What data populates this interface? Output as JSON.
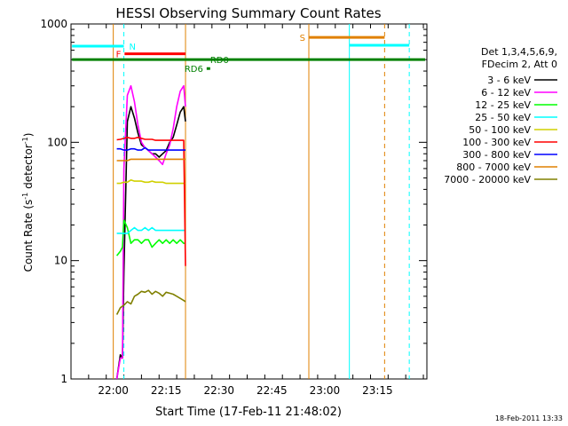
{
  "chart_data": {
    "type": "line",
    "title": "HESSI Observing Summary Count Rates",
    "xlabel": "Start Time (17-Feb-11 21:48:02)",
    "ylabel_main": "Count Rate (s",
    "ylabel_sup1": "-1",
    "ylabel_mid": " detector",
    "ylabel_sup2": "-1",
    "ylabel_end": ")",
    "yscale": "log",
    "ylim": [
      1,
      1000
    ],
    "xlim_min": [
      0,
      101
    ],
    "x_ticks": [
      {
        "label": "22:00",
        "min": 12
      },
      {
        "label": "22:15",
        "min": 27
      },
      {
        "label": "22:30",
        "min": 42
      },
      {
        "label": "22:45",
        "min": 57
      },
      {
        "label": "23:00",
        "min": 72
      },
      {
        "label": "23:15",
        "min": 87
      }
    ],
    "y_ticks": [
      {
        "label": "1",
        "v": 1
      },
      {
        "label": "10",
        "v": 10
      },
      {
        "label": "100",
        "v": 100
      },
      {
        "label": "1000",
        "v": 1000
      }
    ],
    "legend": {
      "header1": "Det 1,3,4,5,6,9,",
      "header2": "FDecim 2, Att 0",
      "placement": "right"
    },
    "series": [
      {
        "name": "3 - 6 keV",
        "color": "#000000",
        "points": [
          [
            13,
            1
          ],
          [
            14,
            1.6
          ],
          [
            14.6,
            1.5
          ],
          [
            15,
            8
          ],
          [
            16,
            150
          ],
          [
            17,
            200
          ],
          [
            18,
            160
          ],
          [
            19,
            120
          ],
          [
            20,
            95
          ],
          [
            21,
            90
          ],
          [
            22,
            85
          ],
          [
            23,
            80
          ],
          [
            24,
            80
          ],
          [
            25,
            75
          ],
          [
            26,
            80
          ],
          [
            27,
            85
          ],
          [
            28,
            100
          ],
          [
            29,
            110
          ],
          [
            30,
            140
          ],
          [
            31,
            180
          ],
          [
            32,
            200
          ],
          [
            32.5,
            150
          ]
        ]
      },
      {
        "name": "6 - 12 keV",
        "color": "#ff00ff",
        "points": [
          [
            13,
            1
          ],
          [
            14,
            1.5
          ],
          [
            14.6,
            1.5
          ],
          [
            15,
            60
          ],
          [
            16,
            250
          ],
          [
            17,
            300
          ],
          [
            18,
            220
          ],
          [
            19,
            140
          ],
          [
            20,
            100
          ],
          [
            21,
            90
          ],
          [
            22,
            85
          ],
          [
            23,
            80
          ],
          [
            24,
            75
          ],
          [
            25,
            70
          ],
          [
            26,
            65
          ],
          [
            27,
            80
          ],
          [
            28,
            95
          ],
          [
            29,
            130
          ],
          [
            30,
            200
          ],
          [
            31,
            270
          ],
          [
            32,
            300
          ],
          [
            32.5,
            200
          ]
        ]
      },
      {
        "name": "12 - 25 keV",
        "color": "#00ff00",
        "points": [
          [
            13,
            11
          ],
          [
            14,
            12
          ],
          [
            14.6,
            13
          ],
          [
            15,
            22
          ],
          [
            16,
            19
          ],
          [
            17,
            14
          ],
          [
            18,
            15
          ],
          [
            19,
            15
          ],
          [
            20,
            14
          ],
          [
            21,
            15
          ],
          [
            22,
            15
          ],
          [
            23,
            13
          ],
          [
            24,
            14
          ],
          [
            25,
            15
          ],
          [
            26,
            14
          ],
          [
            27,
            15
          ],
          [
            28,
            14
          ],
          [
            29,
            15
          ],
          [
            30,
            14
          ],
          [
            31,
            15
          ],
          [
            32,
            14
          ],
          [
            32.5,
            14
          ]
        ]
      },
      {
        "name": "25 - 50 keV",
        "color": "#00ffff",
        "points": [
          [
            13,
            17
          ],
          [
            14,
            17
          ],
          [
            15,
            17
          ],
          [
            16,
            17
          ],
          [
            17,
            18
          ],
          [
            18,
            19
          ],
          [
            19,
            18
          ],
          [
            20,
            18
          ],
          [
            21,
            19
          ],
          [
            22,
            18
          ],
          [
            23,
            19
          ],
          [
            24,
            18
          ],
          [
            25,
            18
          ],
          [
            26,
            18
          ],
          [
            27,
            18
          ],
          [
            28,
            18
          ],
          [
            29,
            18
          ],
          [
            30,
            18
          ],
          [
            31,
            18
          ],
          [
            32,
            18
          ],
          [
            32.5,
            18
          ]
        ]
      },
      {
        "name": "50 - 100 keV",
        "color": "#d0d000",
        "points": [
          [
            13,
            45
          ],
          [
            14,
            45
          ],
          [
            15,
            46
          ],
          [
            16,
            46
          ],
          [
            17,
            48
          ],
          [
            18,
            47
          ],
          [
            19,
            47
          ],
          [
            20,
            47
          ],
          [
            21,
            46
          ],
          [
            22,
            46
          ],
          [
            23,
            47
          ],
          [
            24,
            46
          ],
          [
            25,
            46
          ],
          [
            26,
            46
          ],
          [
            27,
            45
          ],
          [
            28,
            45
          ],
          [
            29,
            45
          ],
          [
            30,
            45
          ],
          [
            31,
            45
          ],
          [
            32,
            45
          ],
          [
            32.5,
            45
          ]
        ]
      },
      {
        "name": "100 - 300 keV",
        "color": "#ff0000",
        "points": [
          [
            13,
            105
          ],
          [
            14,
            106
          ],
          [
            15,
            108
          ],
          [
            16,
            110
          ],
          [
            17,
            108
          ],
          [
            18,
            108
          ],
          [
            19,
            110
          ],
          [
            20,
            108
          ],
          [
            21,
            106
          ],
          [
            22,
            106
          ],
          [
            23,
            106
          ],
          [
            24,
            104
          ],
          [
            25,
            104
          ],
          [
            26,
            104
          ],
          [
            27,
            104
          ],
          [
            28,
            104
          ],
          [
            29,
            104
          ],
          [
            30,
            104
          ],
          [
            31,
            104
          ],
          [
            32,
            104
          ],
          [
            32.5,
            9
          ]
        ]
      },
      {
        "name": "300 - 800 keV",
        "color": "#0000ff",
        "points": [
          [
            13,
            88
          ],
          [
            14,
            88
          ],
          [
            15,
            86
          ],
          [
            16,
            86
          ],
          [
            17,
            88
          ],
          [
            18,
            88
          ],
          [
            19,
            86
          ],
          [
            20,
            86
          ],
          [
            21,
            90
          ],
          [
            22,
            86
          ],
          [
            23,
            86
          ],
          [
            24,
            86
          ],
          [
            25,
            86
          ],
          [
            26,
            86
          ],
          [
            27,
            86
          ],
          [
            28,
            86
          ],
          [
            29,
            86
          ],
          [
            30,
            86
          ],
          [
            31,
            86
          ],
          [
            32,
            86
          ],
          [
            32.5,
            86
          ]
        ]
      },
      {
        "name": "800 - 7000 keV",
        "color": "#e08000",
        "points": [
          [
            13,
            70
          ],
          [
            14,
            70
          ],
          [
            15,
            70
          ],
          [
            16,
            70
          ],
          [
            17,
            72
          ],
          [
            18,
            72
          ],
          [
            19,
            72
          ],
          [
            20,
            72
          ],
          [
            21,
            72
          ],
          [
            22,
            72
          ],
          [
            23,
            72
          ],
          [
            24,
            72
          ],
          [
            25,
            72
          ],
          [
            26,
            72
          ],
          [
            27,
            72
          ],
          [
            28,
            72
          ],
          [
            29,
            72
          ],
          [
            30,
            72
          ],
          [
            31,
            72
          ],
          [
            32,
            72
          ],
          [
            32.5,
            72
          ]
        ]
      },
      {
        "name": "7000 - 20000 keV",
        "color": "#808000",
        "points": [
          [
            13,
            3.5
          ],
          [
            14,
            4
          ],
          [
            15,
            4.2
          ],
          [
            16,
            4.5
          ],
          [
            17,
            4.3
          ],
          [
            18,
            5
          ],
          [
            19,
            5.2
          ],
          [
            20,
            5.5
          ],
          [
            21,
            5.4
          ],
          [
            22,
            5.6
          ],
          [
            23,
            5.2
          ],
          [
            24,
            5.5
          ],
          [
            25,
            5.3
          ],
          [
            26,
            5
          ],
          [
            27,
            5.4
          ],
          [
            28,
            5.3
          ],
          [
            29,
            5.2
          ],
          [
            30,
            5
          ],
          [
            31,
            4.8
          ],
          [
            32,
            4.6
          ],
          [
            32.5,
            4.5
          ]
        ]
      }
    ],
    "vertical_lines": [
      {
        "min": 12.0,
        "color": "#e08000",
        "dash": false
      },
      {
        "min": 32.5,
        "color": "#e08000",
        "dash": false
      },
      {
        "min": 15.0,
        "color": "#00ffff",
        "dash": true
      },
      {
        "min": 67.5,
        "color": "#e08000",
        "dash": false
      },
      {
        "min": 79.0,
        "color": "#00ffff",
        "dash": false
      },
      {
        "min": 89.0,
        "color": "#e08000",
        "dash": true
      },
      {
        "min": 96.0,
        "color": "#00ffff",
        "dash": true
      }
    ],
    "flag_bars": [
      {
        "label": "N",
        "color": "#00ffff",
        "from": 0.3,
        "to": 15.0,
        "v": 650,
        "label_at": 16.5,
        "label_side": "right"
      },
      {
        "label": "F",
        "color": "#ff0000",
        "from": 15.2,
        "to": 32.5,
        "v": 560,
        "label_at": 14.2,
        "label_side": "left"
      },
      {
        "label": "RD0",
        "color": "#008000",
        "from": 0.3,
        "to": 100.5,
        "v": 500,
        "label_at": 39.5,
        "label_side": "right"
      },
      {
        "label": "RD6",
        "color": "#008000",
        "from": 38.5,
        "to": 39.5,
        "v": 420,
        "label_at": 37.5,
        "label_side": "left"
      },
      {
        "label": "S",
        "color": "#e08000",
        "from": 67.5,
        "to": 89.0,
        "v": 770,
        "label_at": 66.5,
        "label_side": "left"
      },
      {
        "label": "",
        "color": "#00ffff",
        "from": 79.0,
        "to": 96.0,
        "v": 660,
        "label_at": 0,
        "label_side": "right"
      }
    ]
  },
  "timestamp": "18-Feb-2011 13:33"
}
